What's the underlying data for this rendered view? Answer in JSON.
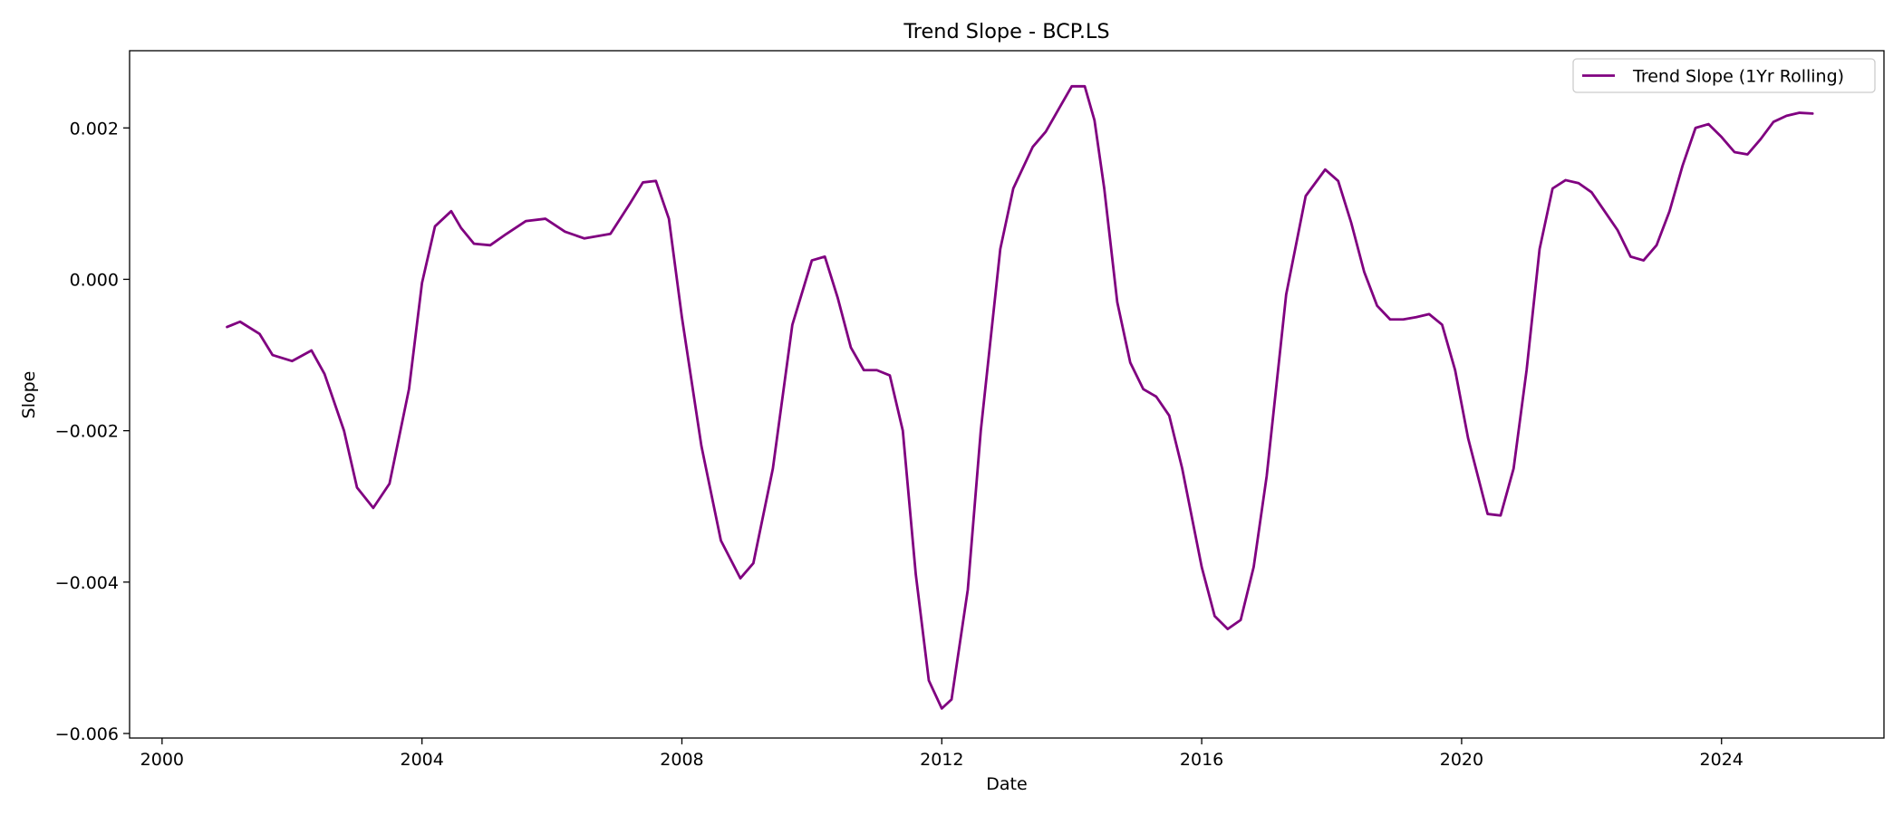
{
  "chart_data": {
    "type": "line",
    "title": "Trend Slope - BCP.LS",
    "xlabel": "Date",
    "ylabel": "Slope",
    "xlim": [
      1999.5,
      2026.5
    ],
    "ylim": [
      -0.00606,
      0.00302
    ],
    "grid": false,
    "legend_position": "top-right",
    "x_ticks": [
      {
        "value": 2000,
        "label": "2000"
      },
      {
        "value": 2004,
        "label": "2004"
      },
      {
        "value": 2008,
        "label": "2008"
      },
      {
        "value": 2012,
        "label": "2012"
      },
      {
        "value": 2016,
        "label": "2016"
      },
      {
        "value": 2020,
        "label": "2020"
      },
      {
        "value": 2024,
        "label": "2024"
      }
    ],
    "y_ticks": [
      {
        "value": 0.002,
        "label": "0.002"
      },
      {
        "value": 0.0,
        "label": "0.000"
      },
      {
        "value": -0.002,
        "label": "−0.002"
      },
      {
        "value": -0.004,
        "label": "−0.004"
      },
      {
        "value": -0.006,
        "label": "−0.006"
      }
    ],
    "series": [
      {
        "name": "Trend Slope (1Yr Rolling)",
        "color": "#800080",
        "x": [
          2001.0,
          2001.2,
          2001.5,
          2001.7,
          2002.0,
          2002.3,
          2002.5,
          2002.8,
          2003.0,
          2003.25,
          2003.5,
          2003.8,
          2004.0,
          2004.2,
          2004.45,
          2004.6,
          2004.8,
          2005.05,
          2005.3,
          2005.6,
          2005.9,
          2006.2,
          2006.5,
          2006.9,
          2007.2,
          2007.4,
          2007.6,
          2007.8,
          2008.0,
          2008.3,
          2008.6,
          2008.9,
          2009.1,
          2009.4,
          2009.7,
          2010.0,
          2010.2,
          2010.4,
          2010.6,
          2010.8,
          2011.0,
          2011.2,
          2011.4,
          2011.6,
          2011.8,
          2012.0,
          2012.15,
          2012.4,
          2012.6,
          2012.9,
          2013.1,
          2013.4,
          2013.6,
          2013.8,
          2014.0,
          2014.2,
          2014.35,
          2014.5,
          2014.7,
          2014.9,
          2015.1,
          2015.3,
          2015.5,
          2015.7,
          2016.0,
          2016.2,
          2016.4,
          2016.6,
          2016.8,
          2017.0,
          2017.3,
          2017.6,
          2017.9,
          2018.1,
          2018.3,
          2018.5,
          2018.7,
          2018.9,
          2019.1,
          2019.3,
          2019.5,
          2019.7,
          2019.9,
          2020.1,
          2020.4,
          2020.6,
          2020.8,
          2021.0,
          2021.2,
          2021.4,
          2021.6,
          2021.8,
          2022.0,
          2022.2,
          2022.4,
          2022.6,
          2022.8,
          2023.0,
          2023.2,
          2023.4,
          2023.6,
          2023.8,
          2024.0,
          2024.2,
          2024.4,
          2024.6,
          2024.8,
          2025.0,
          2025.2,
          2025.4
        ],
        "values": [
          -0.00063,
          -0.00056,
          -0.00072,
          -0.001,
          -0.00108,
          -0.00094,
          -0.00125,
          -0.002,
          -0.00275,
          -0.00302,
          -0.0027,
          -0.00145,
          -5e-05,
          0.0007,
          0.0009,
          0.00068,
          0.00047,
          0.00045,
          0.0006,
          0.00077,
          0.0008,
          0.00063,
          0.00054,
          0.0006,
          0.001,
          0.00128,
          0.0013,
          0.0008,
          -0.0005,
          -0.0022,
          -0.00345,
          -0.00395,
          -0.00375,
          -0.0025,
          -0.0006,
          0.00025,
          0.0003,
          -0.00025,
          -0.0009,
          -0.0012,
          -0.0012,
          -0.00127,
          -0.002,
          -0.0039,
          -0.0053,
          -0.00567,
          -0.00555,
          -0.0041,
          -0.002,
          0.0004,
          0.0012,
          0.00175,
          0.00195,
          0.00225,
          0.00255,
          0.00255,
          0.0021,
          0.0012,
          -0.0003,
          -0.0011,
          -0.00145,
          -0.00155,
          -0.0018,
          -0.0025,
          -0.0038,
          -0.00445,
          -0.00462,
          -0.0045,
          -0.0038,
          -0.0026,
          -0.0002,
          0.0011,
          0.00145,
          0.0013,
          0.00075,
          0.0001,
          -0.00035,
          -0.00053,
          -0.00053,
          -0.0005,
          -0.00046,
          -0.0006,
          -0.0012,
          -0.0021,
          -0.0031,
          -0.00312,
          -0.0025,
          -0.0012,
          0.0004,
          0.0012,
          0.00131,
          0.00127,
          0.00115,
          0.0009,
          0.00065,
          0.0003,
          0.00025,
          0.00045,
          0.0009,
          0.0015,
          0.002,
          0.00205,
          0.00188,
          0.00168,
          0.00165,
          0.00185,
          0.00208,
          0.00216,
          0.0022,
          0.00219
        ]
      }
    ]
  }
}
